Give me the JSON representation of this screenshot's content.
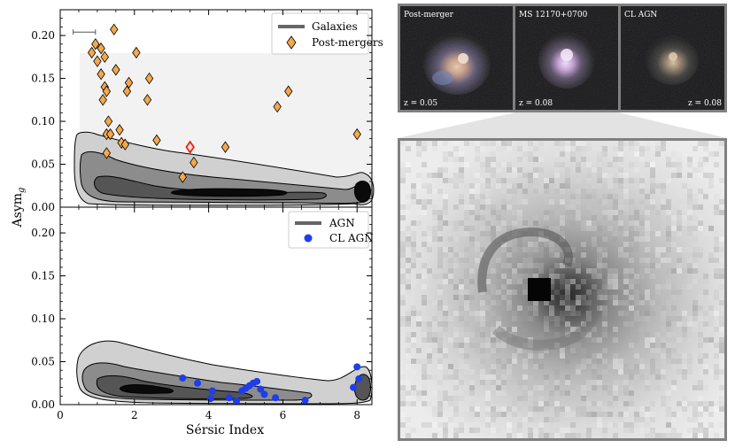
{
  "chart_data": [
    {
      "type": "scatter",
      "panel": "top",
      "xlabel": "",
      "ylabel": "Asym",
      "ylabel_sub": "g",
      "xlim": [
        0,
        8.4
      ],
      "ylim": [
        0,
        0.23
      ],
      "yticks": [
        "0.00",
        "0.05",
        "0.10",
        "0.15",
        "0.20"
      ],
      "ytick_values": [
        0,
        0.05,
        0.1,
        0.15,
        0.2
      ],
      "grid": false,
      "legend_position": "top-right",
      "legend": [
        {
          "label": "Galaxies",
          "marker": "line",
          "color": "#666666"
        },
        {
          "label": "Post-mergers",
          "marker": "diamond",
          "color": "#f5a74c"
        }
      ],
      "density_contour": "Galaxies",
      "scatter_series": "Post-mergers",
      "error_bar": {
        "x_center": 0.65,
        "half_width": 0.3,
        "y": 0.204
      },
      "series": [
        {
          "name": "Post-mergers",
          "color": "#f5a74c",
          "points": [
            [
              0.85,
              0.18
            ],
            [
              0.95,
              0.19
            ],
            [
              1.0,
              0.17
            ],
            [
              1.1,
              0.185
            ],
            [
              1.2,
              0.175
            ],
            [
              1.1,
              0.155
            ],
            [
              1.2,
              0.14
            ],
            [
              1.25,
              0.135
            ],
            [
              1.15,
              0.125
            ],
            [
              1.45,
              0.207
            ],
            [
              1.5,
              0.16
            ],
            [
              2.05,
              0.18
            ],
            [
              1.85,
              0.145
            ],
            [
              1.8,
              0.135
            ],
            [
              2.4,
              0.15
            ],
            [
              2.35,
              0.125
            ],
            [
              1.3,
              0.1
            ],
            [
              1.25,
              0.085
            ],
            [
              1.35,
              0.085
            ],
            [
              1.6,
              0.09
            ],
            [
              1.65,
              0.075
            ],
            [
              1.75,
              0.073
            ],
            [
              1.25,
              0.063
            ],
            [
              2.6,
              0.078
            ],
            [
              3.6,
              0.052
            ],
            [
              3.3,
              0.035
            ],
            [
              4.45,
              0.07
            ],
            [
              5.85,
              0.117
            ],
            [
              6.15,
              0.135
            ],
            [
              8.0,
              0.085
            ]
          ],
          "highlight": [
            3.5,
            0.07
          ],
          "highlight_color": "#e8231c"
        }
      ]
    },
    {
      "type": "scatter",
      "panel": "bottom",
      "xlabel": "Sérsic Index",
      "ylabel": "",
      "xlim": [
        0,
        8.4
      ],
      "ylim": [
        0,
        0.23
      ],
      "xticks": [
        "0",
        "2",
        "4",
        "6",
        "8"
      ],
      "xtick_values": [
        0,
        2,
        4,
        6,
        8
      ],
      "yticks": [
        "0.00",
        "0.05",
        "0.10",
        "0.15",
        "0.20"
      ],
      "ytick_values": [
        0,
        0.05,
        0.1,
        0.15,
        0.2
      ],
      "grid": false,
      "legend_position": "top-right",
      "legend": [
        {
          "label": "AGN",
          "marker": "line",
          "color": "#666666"
        },
        {
          "label": "CL AGN",
          "marker": "circle",
          "color": "#1f3de8"
        }
      ],
      "density_contour": "AGN",
      "scatter_series": "CL AGN",
      "series": [
        {
          "name": "CL AGN",
          "color": "#1f3de8",
          "points": [
            [
              3.3,
              0.031
            ],
            [
              3.7,
              0.025
            ],
            [
              4.1,
              0.016
            ],
            [
              4.05,
              0.007
            ],
            [
              4.55,
              0.008
            ],
            [
              4.75,
              0.004
            ],
            [
              4.9,
              0.016
            ],
            [
              5.0,
              0.019
            ],
            [
              5.1,
              0.022
            ],
            [
              5.2,
              0.025
            ],
            [
              5.3,
              0.027
            ],
            [
              5.4,
              0.018
            ],
            [
              5.5,
              0.012
            ],
            [
              5.8,
              0.008
            ],
            [
              6.6,
              0.005
            ],
            [
              7.9,
              0.02
            ],
            [
              8.0,
              0.044
            ],
            [
              8.05,
              0.03
            ]
          ]
        }
      ]
    }
  ],
  "thumbnails": [
    {
      "title": "Post-merger",
      "z_label": "z = 0.05"
    },
    {
      "title": "MS 12170+0700",
      "z_label": "z = 0.08"
    },
    {
      "title": "CL AGN",
      "z_label": "z = 0.08"
    }
  ]
}
